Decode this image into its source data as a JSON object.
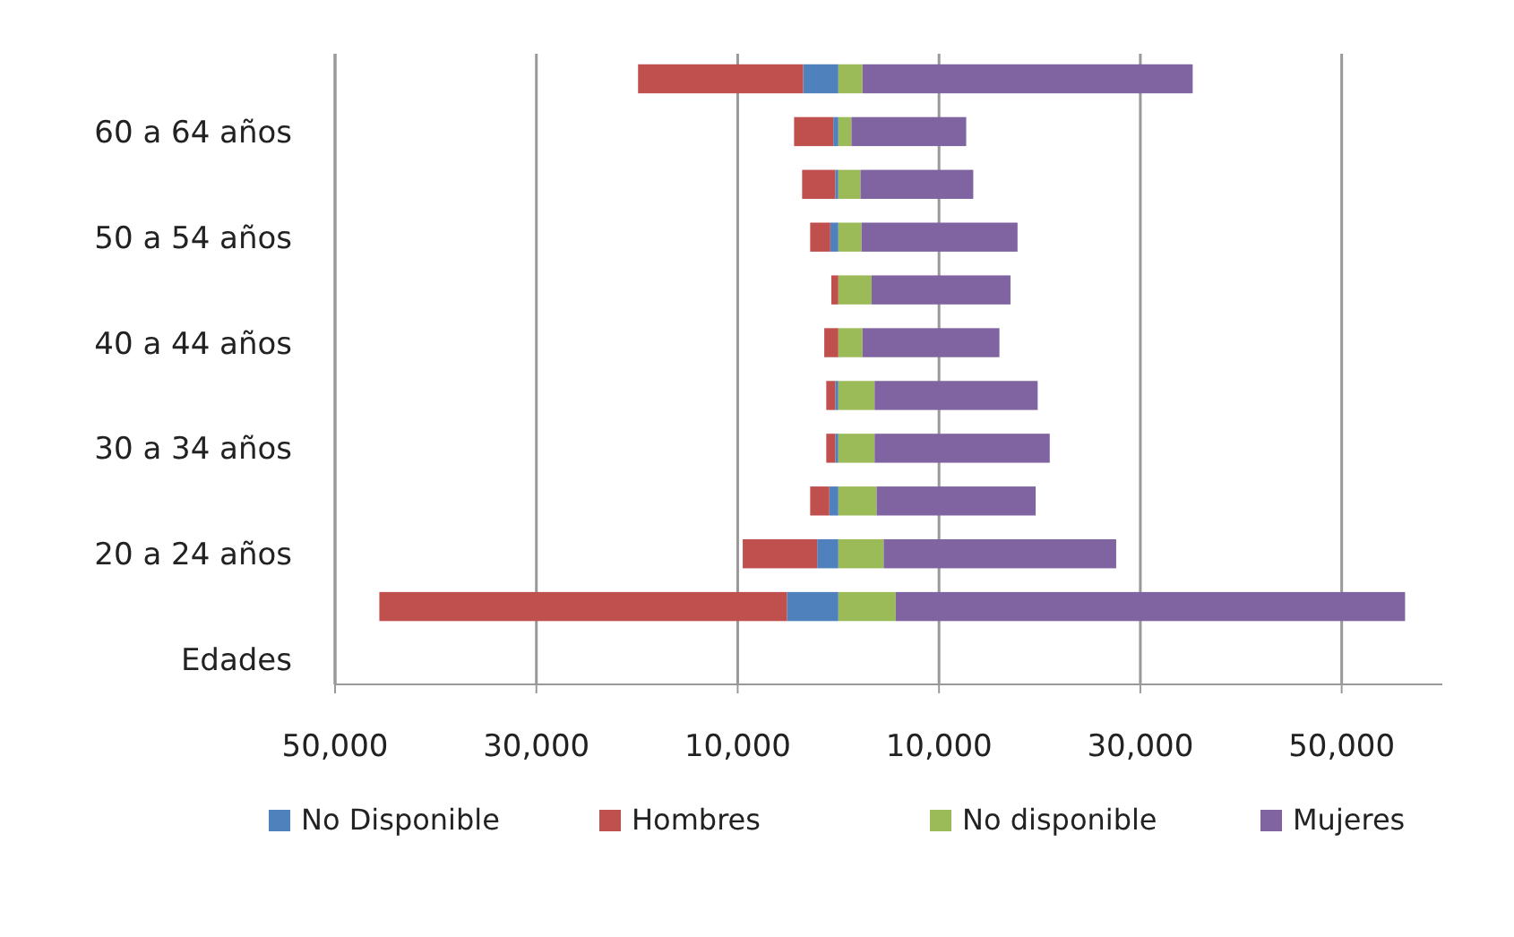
{
  "chart_data": {
    "type": "bar",
    "orientation": "horizontal",
    "stacked": true,
    "categories": [
      null,
      "60 a 64 años",
      null,
      "50 a 54 años",
      null,
      "40 a 44 años",
      null,
      "30 a 34 años",
      null,
      "20 a 24 años",
      null,
      "Edades"
    ],
    "series": [
      {
        "name": "No Disponible",
        "color": "#4f81bd",
        "values": [
          -3500,
          -500,
          -300,
          -800,
          0,
          0,
          -300,
          -300,
          -900,
          -2100,
          -5100,
          null
        ]
      },
      {
        "name": "Hombres",
        "color": "#c0504d",
        "values": [
          -16400,
          -3900,
          -3300,
          -2000,
          -700,
          -1400,
          -900,
          -900,
          -1900,
          -7400,
          -40500,
          null
        ]
      },
      {
        "name": "No disponible",
        "color": "#9bbb59",
        "values": [
          2400,
          1300,
          2200,
          2300,
          3300,
          2400,
          3600,
          3600,
          3800,
          4500,
          5700,
          null
        ]
      },
      {
        "name": "Mujeres",
        "color": "#8064a2",
        "values": [
          32800,
          11400,
          11200,
          15500,
          13800,
          13600,
          16200,
          17400,
          15800,
          23100,
          50600,
          null
        ]
      }
    ],
    "xlim": [
      -50000,
      60000
    ],
    "xticks": [
      {
        "value": -50000,
        "label": "50,000"
      },
      {
        "value": -30000,
        "label": "30,000"
      },
      {
        "value": -10000,
        "label": "10,000"
      },
      {
        "value": 10000,
        "label": "10,000"
      },
      {
        "value": 30000,
        "label": "30,000"
      },
      {
        "value": 50000,
        "label": "50,000"
      }
    ],
    "grid": "x",
    "legend": "bottom"
  }
}
